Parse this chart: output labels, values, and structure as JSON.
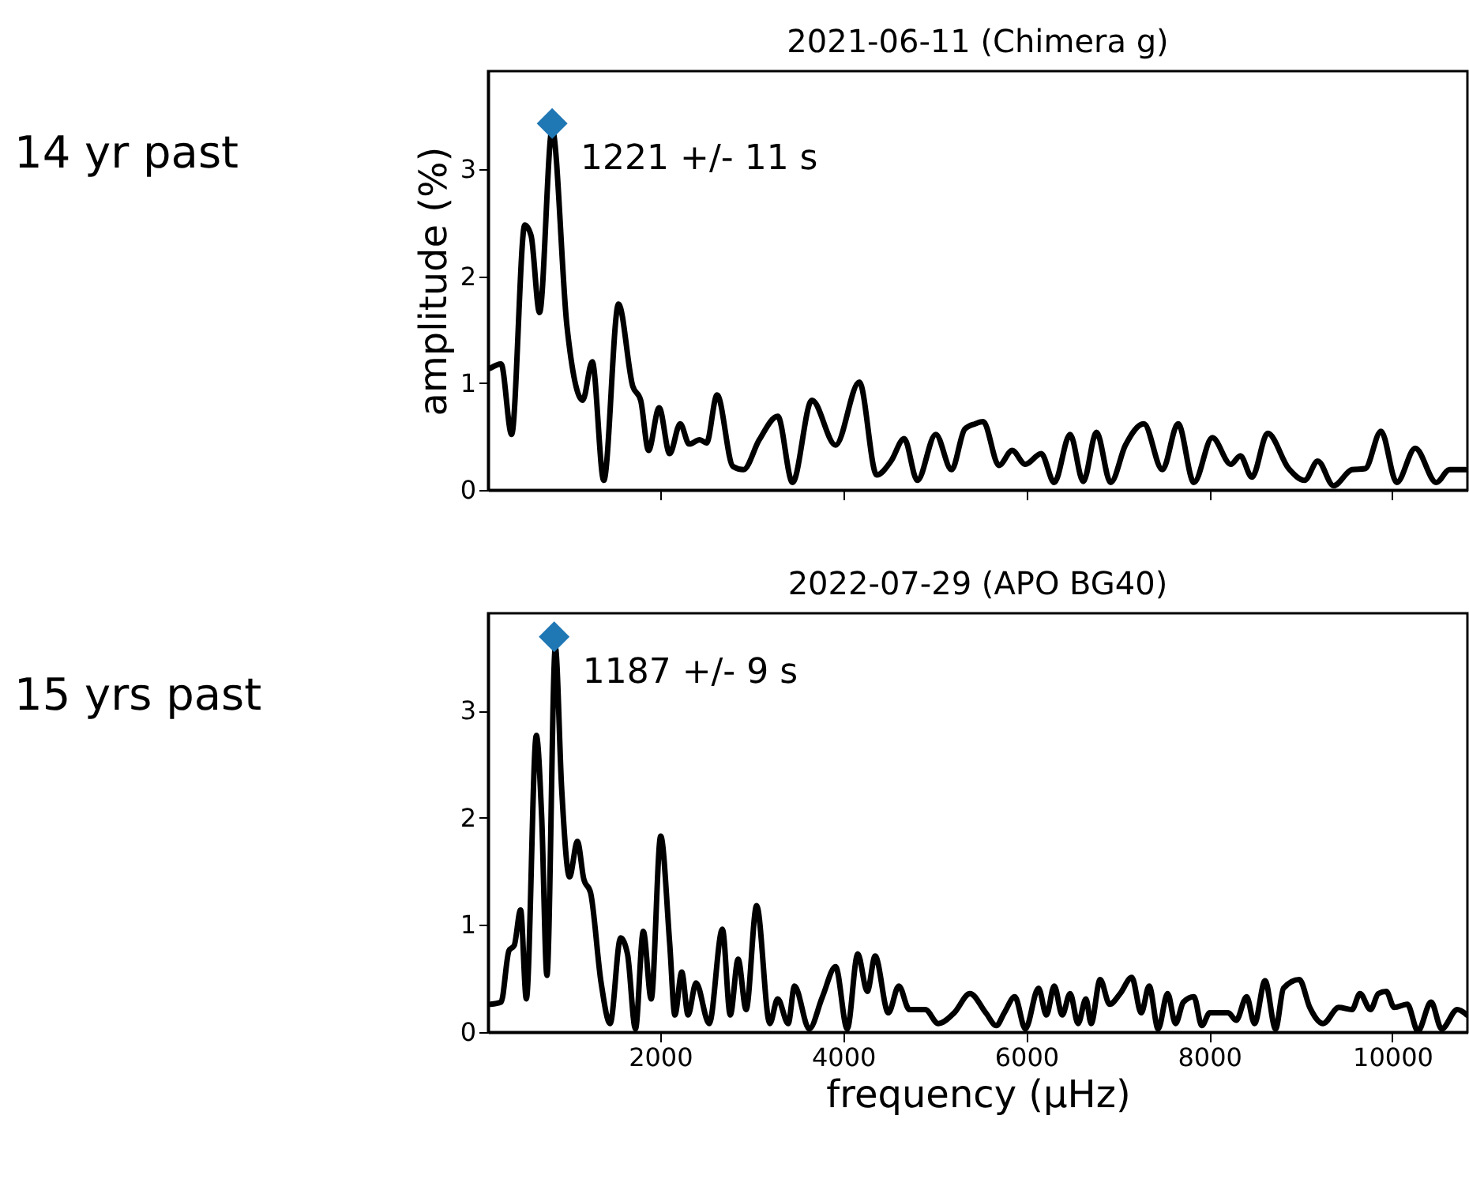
{
  "chart_data": [
    {
      "type": "line",
      "title": "2021-06-11 (Chimera g)",
      "ylabel": "amplitude (%)",
      "xlim": [
        120,
        10820
      ],
      "ylim": [
        0,
        3.92
      ],
      "xticks": [
        2000,
        4000,
        6000,
        8000,
        10000
      ],
      "yticks": [
        0,
        1,
        2,
        3
      ],
      "tick_labels": "y",
      "grid": false,
      "series": [
        {
          "color": "#000000",
          "x": [
            147,
            262,
            377,
            521,
            590,
            682,
            820,
            981,
            1154,
            1258,
            1384,
            1545,
            1701,
            1787,
            1873,
            1989,
            2104,
            2219,
            2317,
            2432,
            2507,
            2622,
            2795,
            2910,
            3083,
            3285,
            3446,
            3658,
            3917,
            4176,
            4366,
            4522,
            4666,
            4810,
            5011,
            5184,
            5328,
            5443,
            5529,
            5702,
            5846,
            5990,
            6163,
            6306,
            6479,
            6623,
            6767,
            6922,
            7084,
            7285,
            7487,
            7659,
            7832,
            8033,
            8235,
            8339,
            8465,
            8638,
            8868,
            9041,
            9185,
            9358,
            9559,
            9703,
            9876,
            10048,
            10250,
            10480,
            10624,
            10797
          ],
          "values": [
            1.14,
            1.18,
            0.52,
            2.48,
            2.38,
            1.66,
            3.38,
            1.54,
            0.84,
            1.2,
            0.09,
            1.74,
            0.97,
            0.84,
            0.37,
            0.77,
            0.34,
            0.62,
            0.43,
            0.47,
            0.44,
            0.89,
            0.22,
            0.19,
            0.47,
            0.69,
            0.07,
            0.84,
            0.42,
            1.01,
            0.14,
            0.27,
            0.48,
            0.09,
            0.52,
            0.19,
            0.57,
            0.62,
            0.64,
            0.23,
            0.37,
            0.24,
            0.34,
            0.07,
            0.52,
            0.08,
            0.54,
            0.07,
            0.42,
            0.62,
            0.19,
            0.62,
            0.07,
            0.49,
            0.24,
            0.32,
            0.12,
            0.53,
            0.2,
            0.09,
            0.27,
            0.04,
            0.19,
            0.2,
            0.55,
            0.07,
            0.39,
            0.07,
            0.19,
            0.19
          ]
        },
        {
          "type": "scatter",
          "marker": "diamond",
          "color": "#1f77b4",
          "x": [
            820
          ],
          "values": [
            3.43
          ]
        }
      ],
      "annotations": [
        "14 yr past",
        {
          "text": "1221 +/- 11 s",
          "x": 820,
          "y": 3.43
        }
      ]
    },
    {
      "type": "line",
      "title": "2022-07-29 (APO BG40)",
      "xlabel": "frequency (μHz)",
      "xlim": [
        120,
        10820
      ],
      "ylim": [
        0,
        3.91
      ],
      "xticks": [
        2000,
        4000,
        6000,
        8000,
        10000
      ],
      "yticks": [
        0,
        1,
        2,
        3
      ],
      "grid": false,
      "series": [
        {
          "color": "#000000",
          "x": [
            147,
            262,
            348,
            406,
            475,
            538,
            647,
            705,
            763,
            855,
            924,
            1010,
            1096,
            1165,
            1240,
            1355,
            1453,
            1568,
            1643,
            1730,
            1816,
            1902,
            2006,
            2104,
            2161,
            2236,
            2305,
            2392,
            2536,
            2680,
            2766,
            2852,
            2939,
            3054,
            3198,
            3284,
            3399,
            3468,
            3629,
            3773,
            3917,
            4044,
            4159,
            4263,
            4349,
            4493,
            4608,
            4723,
            4896,
            5039,
            5213,
            5385,
            5558,
            5673,
            5760,
            5875,
            5990,
            6134,
            6220,
            6306,
            6393,
            6479,
            6566,
            6652,
            6709,
            6807,
            6911,
            7026,
            7153,
            7256,
            7343,
            7441,
            7544,
            7631,
            7717,
            7832,
            7918,
            8005,
            8206,
            8293,
            8408,
            8494,
            8609,
            8724,
            8811,
            8983,
            9098,
            9242,
            9415,
            9559,
            9646,
            9761,
            9847,
            9933,
            10020,
            10163,
            10279,
            10423,
            10538,
            10710,
            10814
          ],
          "values": [
            0.26,
            0.28,
            0.76,
            0.81,
            1.14,
            0.31,
            2.77,
            2.02,
            0.53,
            3.59,
            2.27,
            1.45,
            1.78,
            1.43,
            1.3,
            0.46,
            0.08,
            0.88,
            0.73,
            0.03,
            0.94,
            0.31,
            1.83,
            0.83,
            0.16,
            0.56,
            0.16,
            0.46,
            0.08,
            0.96,
            0.16,
            0.68,
            0.21,
            1.18,
            0.08,
            0.31,
            0.08,
            0.43,
            0.03,
            0.33,
            0.61,
            0.03,
            0.73,
            0.38,
            0.71,
            0.18,
            0.43,
            0.21,
            0.21,
            0.08,
            0.18,
            0.36,
            0.18,
            0.06,
            0.18,
            0.33,
            0.03,
            0.41,
            0.16,
            0.43,
            0.16,
            0.36,
            0.08,
            0.31,
            0.08,
            0.49,
            0.26,
            0.36,
            0.51,
            0.18,
            0.43,
            0.03,
            0.36,
            0.08,
            0.28,
            0.33,
            0.06,
            0.18,
            0.18,
            0.11,
            0.33,
            0.08,
            0.48,
            0.03,
            0.41,
            0.49,
            0.23,
            0.08,
            0.23,
            0.21,
            0.36,
            0.21,
            0.36,
            0.38,
            0.23,
            0.26,
            0.01,
            0.28,
            0.03,
            0.21,
            0.16
          ]
        },
        {
          "type": "scatter",
          "marker": "diamond",
          "color": "#1f77b4",
          "x": [
            842
          ],
          "values": [
            3.69
          ]
        }
      ],
      "annotations": [
        "15 yrs past",
        {
          "text": "1187 +/- 9 s",
          "x": 842,
          "y": 3.69
        }
      ]
    }
  ]
}
